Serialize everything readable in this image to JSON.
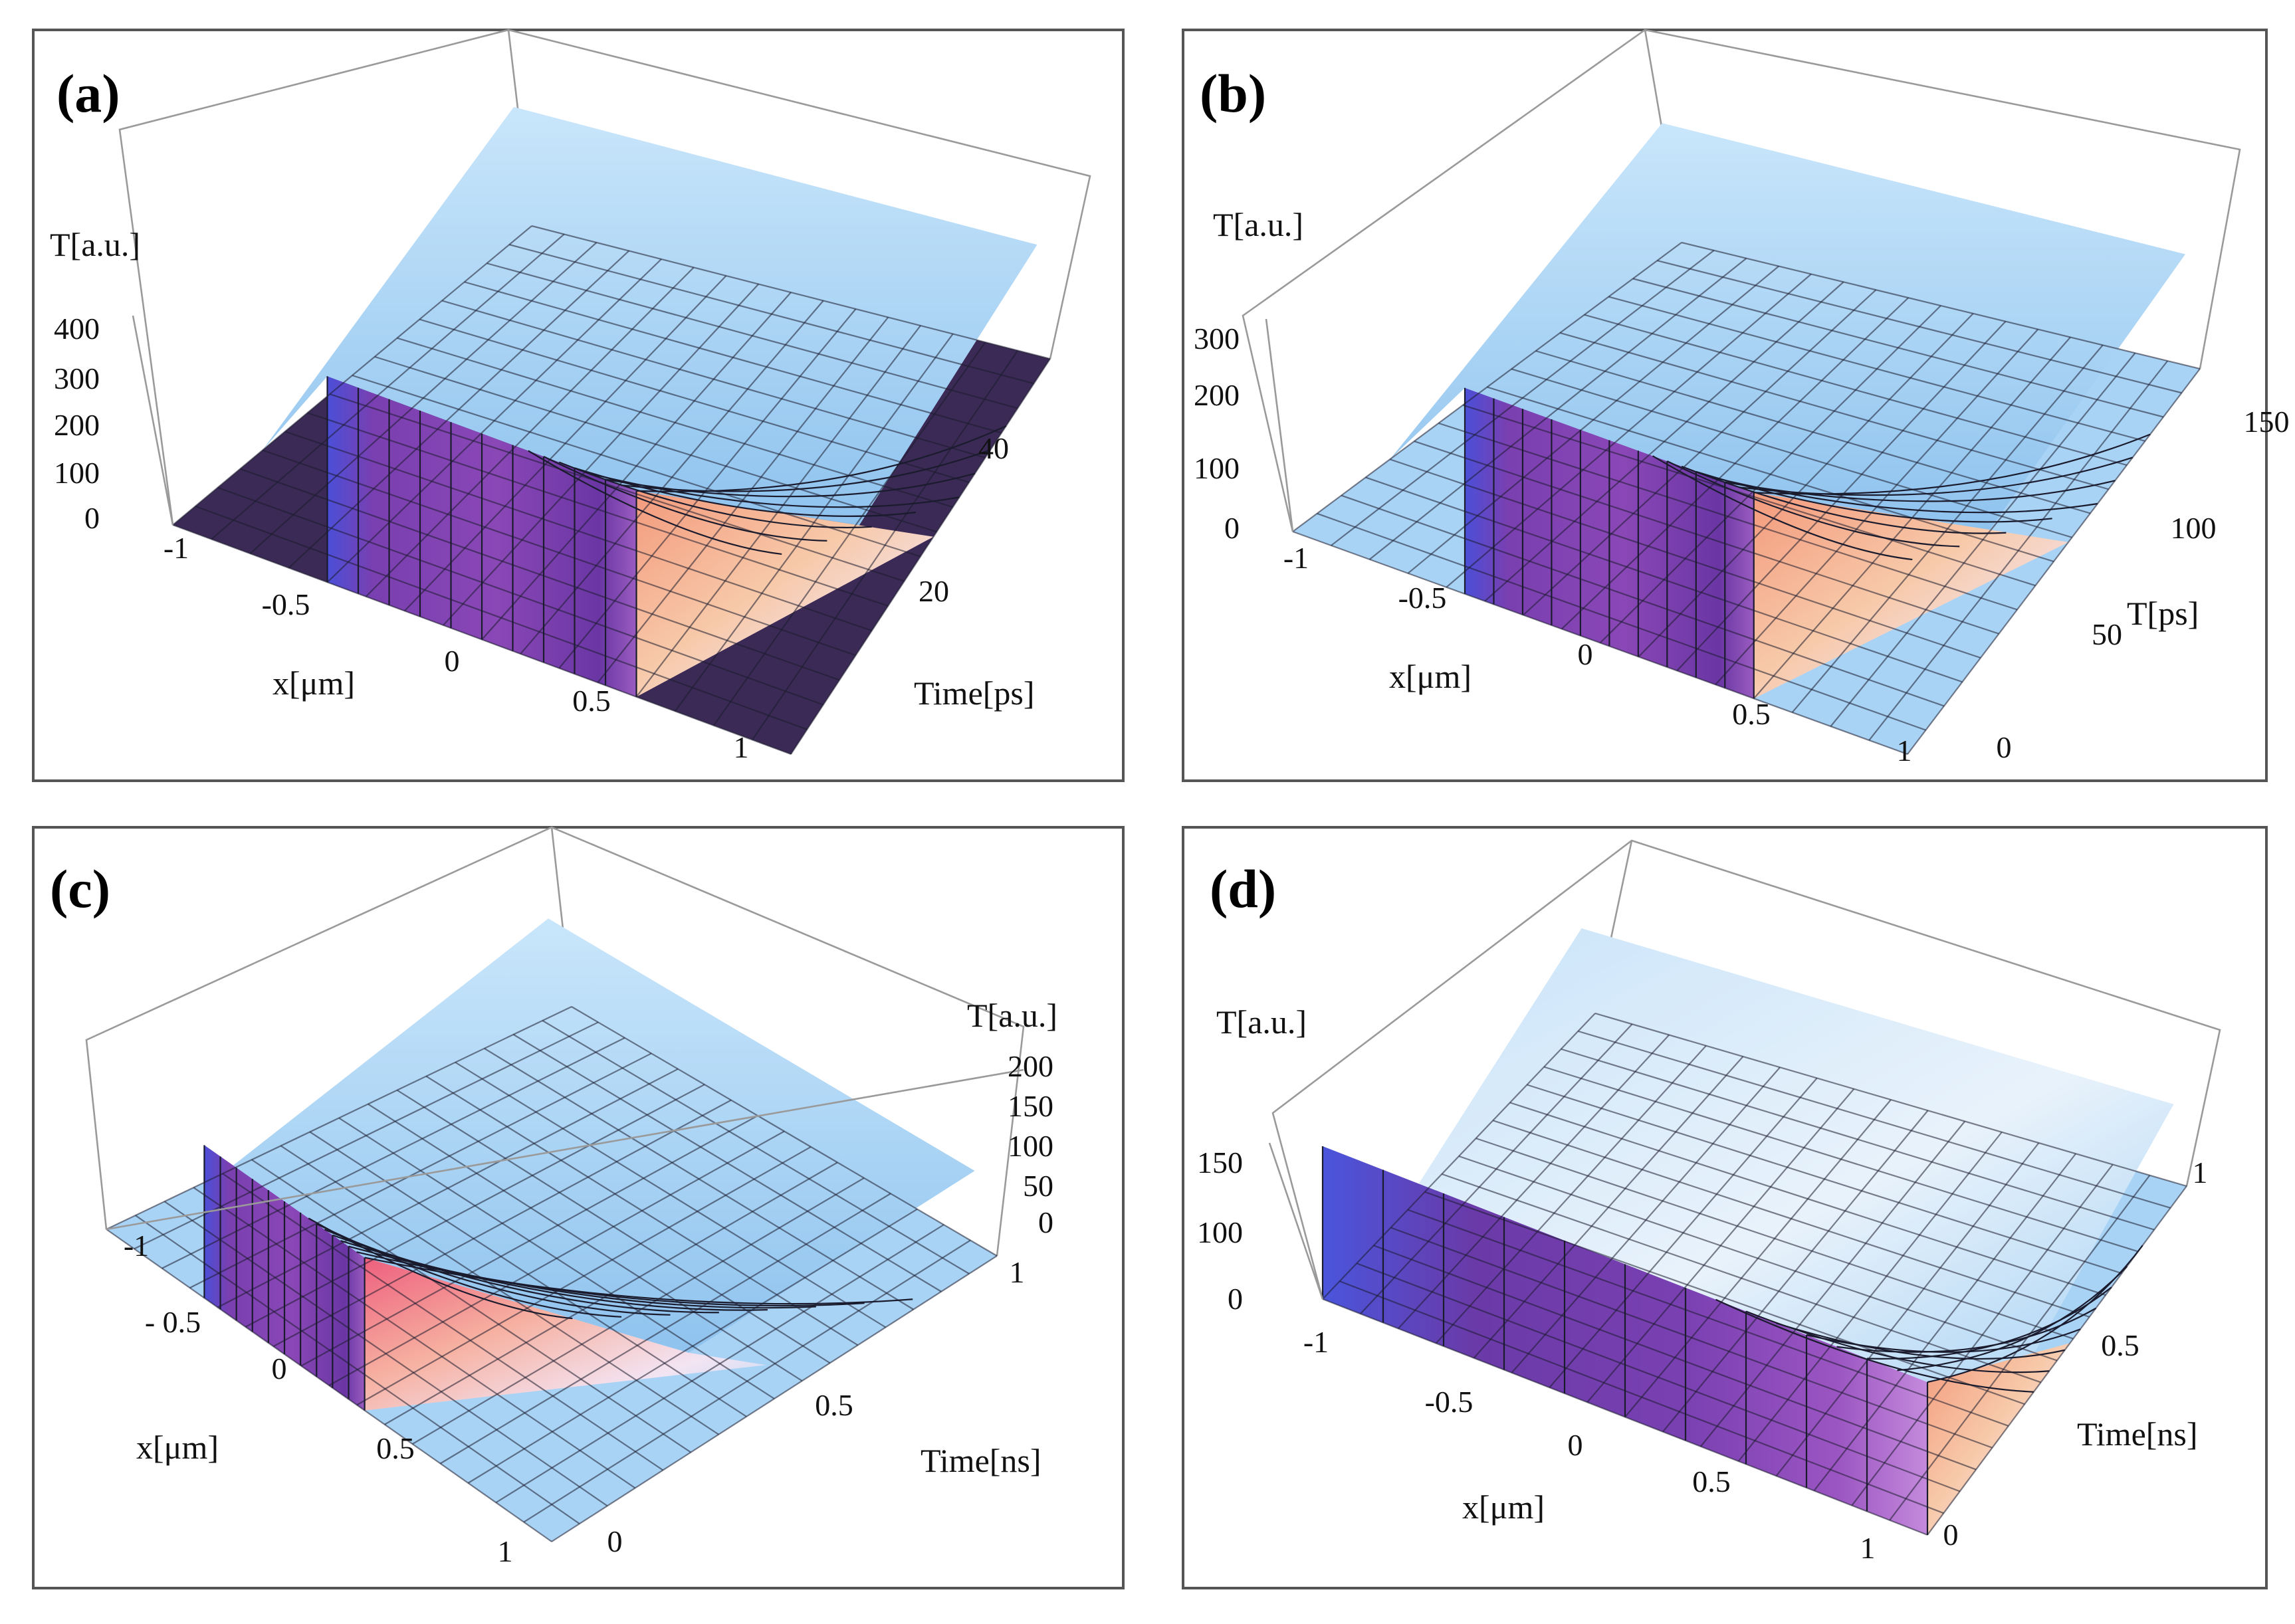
{
  "colors": {
    "base_light": "#a9d3f5",
    "base_dark": "#3b2a55",
    "plateau_purple": "#7a3fb0",
    "plateau_blue": "#5260d8",
    "hot_peach": "#f6b494",
    "hot_pink": "#ef7a90",
    "grid": "#1b1b2e",
    "frame": "#555555"
  },
  "chart_data": [
    {
      "type": "surface3d",
      "panel_label": "(a)",
      "zlabel": "T[a.u.]",
      "xlabel": "x[μm]",
      "ylabel": "Time[ps]",
      "x_ticks": [
        "-1",
        "-0.5",
        "0",
        "0.5",
        "1"
      ],
      "y_ticks": [
        "20",
        "40"
      ],
      "z_ticks": [
        "0",
        "100",
        "200",
        "300",
        "400"
      ],
      "xlim": [
        -1,
        1
      ],
      "ylim": [
        0,
        50
      ],
      "zlim": [
        0,
        400
      ],
      "pulse": {
        "x_start": -0.5,
        "x_end": 0.5,
        "peak": 400
      },
      "base_color": "dark"
    },
    {
      "type": "surface3d",
      "panel_label": "(b)",
      "zlabel": "T[a.u.]",
      "xlabel": "x[μm]",
      "ylabel": "T[ps]",
      "x_ticks": [
        "-1",
        "-0.5",
        "0",
        "0.5",
        "1"
      ],
      "y_ticks": [
        "0",
        "50",
        "100",
        "150"
      ],
      "z_ticks": [
        "0",
        "100",
        "200",
        "300"
      ],
      "xlim": [
        -1,
        1
      ],
      "ylim": [
        0,
        175
      ],
      "zlim": [
        0,
        300
      ],
      "pulse": {
        "x_start": -0.5,
        "x_end": 0.5,
        "peak": 300
      },
      "base_color": "light"
    },
    {
      "type": "surface3d",
      "panel_label": "(c)",
      "zlabel": "T[a.u.]",
      "xlabel": "x[μm]",
      "ylabel": "Time[ns]",
      "x_ticks": [
        "-1",
        "- 0.5",
        "0",
        "0.5",
        "1"
      ],
      "y_ticks": [
        "0",
        "0.5",
        "1"
      ],
      "z_ticks": [
        "0",
        "50",
        "100",
        "150",
        "200"
      ],
      "xlim": [
        -1,
        1
      ],
      "ylim": [
        0,
        1
      ],
      "zlim": [
        0,
        200
      ],
      "pulse": {
        "x_start": -0.5,
        "x_end": 0.5,
        "peak": 200
      },
      "base_color": "light"
    },
    {
      "type": "surface3d",
      "panel_label": "(d)",
      "zlabel": "T[a.u.]",
      "xlabel": "x[μm]",
      "ylabel": "Time[ns]",
      "x_ticks": [
        "-1",
        "-0.5",
        "0",
        "0.5",
        "1"
      ],
      "y_ticks": [
        "0",
        "0.5",
        "1"
      ],
      "z_ticks": [
        "0",
        "100",
        "150"
      ],
      "xlim": [
        -1,
        1
      ],
      "ylim": [
        0,
        1
      ],
      "zlim": [
        0,
        180
      ],
      "pulse": {
        "x_start": -1,
        "x_end": 1,
        "peak": 170
      },
      "base_color": "light"
    }
  ]
}
